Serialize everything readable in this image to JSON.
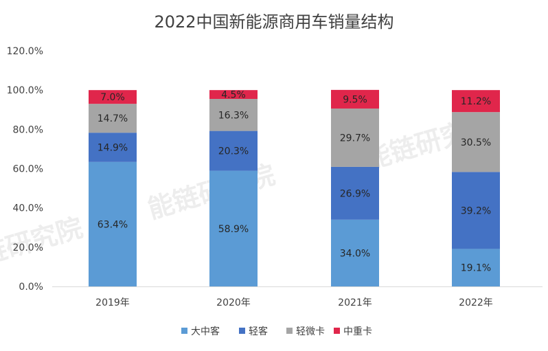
{
  "chart_data": {
    "type": "bar",
    "stacked": true,
    "title": "2022中国新能源商用车销量结构",
    "categories": [
      "2019年",
      "2020年",
      "2021年",
      "2022年"
    ],
    "ylim": [
      0,
      120
    ],
    "yticks": [
      "0.0%",
      "20.0%",
      "40.0%",
      "60.0%",
      "80.0%",
      "100.0%",
      "120.0%"
    ],
    "series": [
      {
        "name": "大中客",
        "color": "#5B9BD5",
        "values": [
          63.4,
          58.9,
          34.0,
          19.1
        ],
        "labels": [
          "63.4%",
          "58.9%",
          "34.0%",
          "19.1%"
        ]
      },
      {
        "name": "轻客",
        "color": "#4472C4",
        "values": [
          14.9,
          20.3,
          26.9,
          39.2
        ],
        "labels": [
          "14.9%",
          "20.3%",
          "26.9%",
          "39.2%"
        ]
      },
      {
        "name": "轻微卡",
        "color": "#A5A5A5",
        "values": [
          14.7,
          16.3,
          29.7,
          30.5
        ],
        "labels": [
          "14.7%",
          "16.3%",
          "29.7%",
          "30.5%"
        ]
      },
      {
        "name": "中重卡",
        "color": "#E0264B",
        "values": [
          7.0,
          4.5,
          9.5,
          11.2
        ],
        "labels": [
          "7.0%",
          "4.5%",
          "9.5%",
          "11.2%"
        ]
      }
    ],
    "grid": false,
    "legend": "bottom"
  },
  "watermark": "能链研究院"
}
